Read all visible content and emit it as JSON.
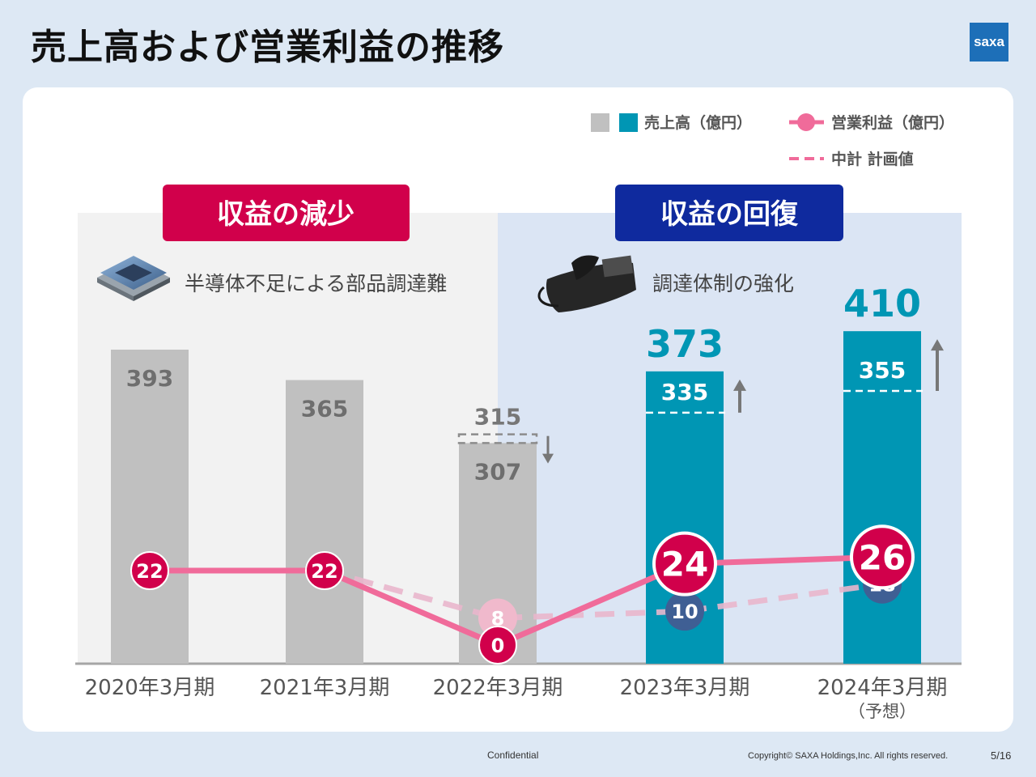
{
  "slide": {
    "title": "売上高および営業利益の推移",
    "logo_text": "saxa"
  },
  "legend": {
    "sales": "売上高（億円）",
    "op_profit": "営業利益（億円）",
    "plan": "中計 計画値"
  },
  "sections": {
    "decline": {
      "label": "収益の減少",
      "note": "半導体不足による部品調達難",
      "icon": "chip-icon",
      "color": "#d1004b"
    },
    "recovery": {
      "label": "収益の回復",
      "note": "調達体制の強化",
      "icon": "phone-icon",
      "color": "#0f2a9e"
    }
  },
  "chart_data": {
    "type": "bar",
    "categories": [
      "2020年3月期",
      "2021年3月期",
      "2022年3月期",
      "2023年3月期",
      "2024年3月期"
    ],
    "category_notes": [
      "",
      "",
      "",
      "",
      "（予想）"
    ],
    "series": [
      {
        "name": "売上高（億円）",
        "type": "bar",
        "values": [
          393,
          365,
          307,
          373,
          410
        ],
        "colors": [
          "#c0c0c0",
          "#c0c0c0",
          "#c0c0c0",
          "#0096b4",
          "#0096b4"
        ]
      },
      {
        "name": "中計 計画値",
        "type": "bar_plan",
        "values": [
          null,
          null,
          315,
          335,
          355
        ]
      },
      {
        "name": "営業利益（億円）",
        "type": "line",
        "values": [
          22,
          22,
          0,
          24,
          26
        ],
        "color": "#f06b9a",
        "marker": "#d1004b"
      },
      {
        "name": "中計 計画値",
        "type": "line_dashed",
        "values": [
          null,
          22,
          8,
          10,
          18
        ],
        "color": "#e9b6cc",
        "markers": [
          "#f0b9cc",
          "#3f5f94",
          "#3f5f94"
        ]
      }
    ],
    "plan_direction": [
      "",
      "",
      "down",
      "up",
      "up"
    ],
    "colors": {
      "gray": "#c0c0c0",
      "teal": "#0096b4",
      "pink": "#f06b9a",
      "crimson": "#d1004b",
      "navy": "#3f5f94"
    }
  },
  "footer": {
    "confidential": "Confidential",
    "copyright": "Copyright© SAXA Holdings,Inc. All rights reserved.",
    "page": "5/16"
  }
}
